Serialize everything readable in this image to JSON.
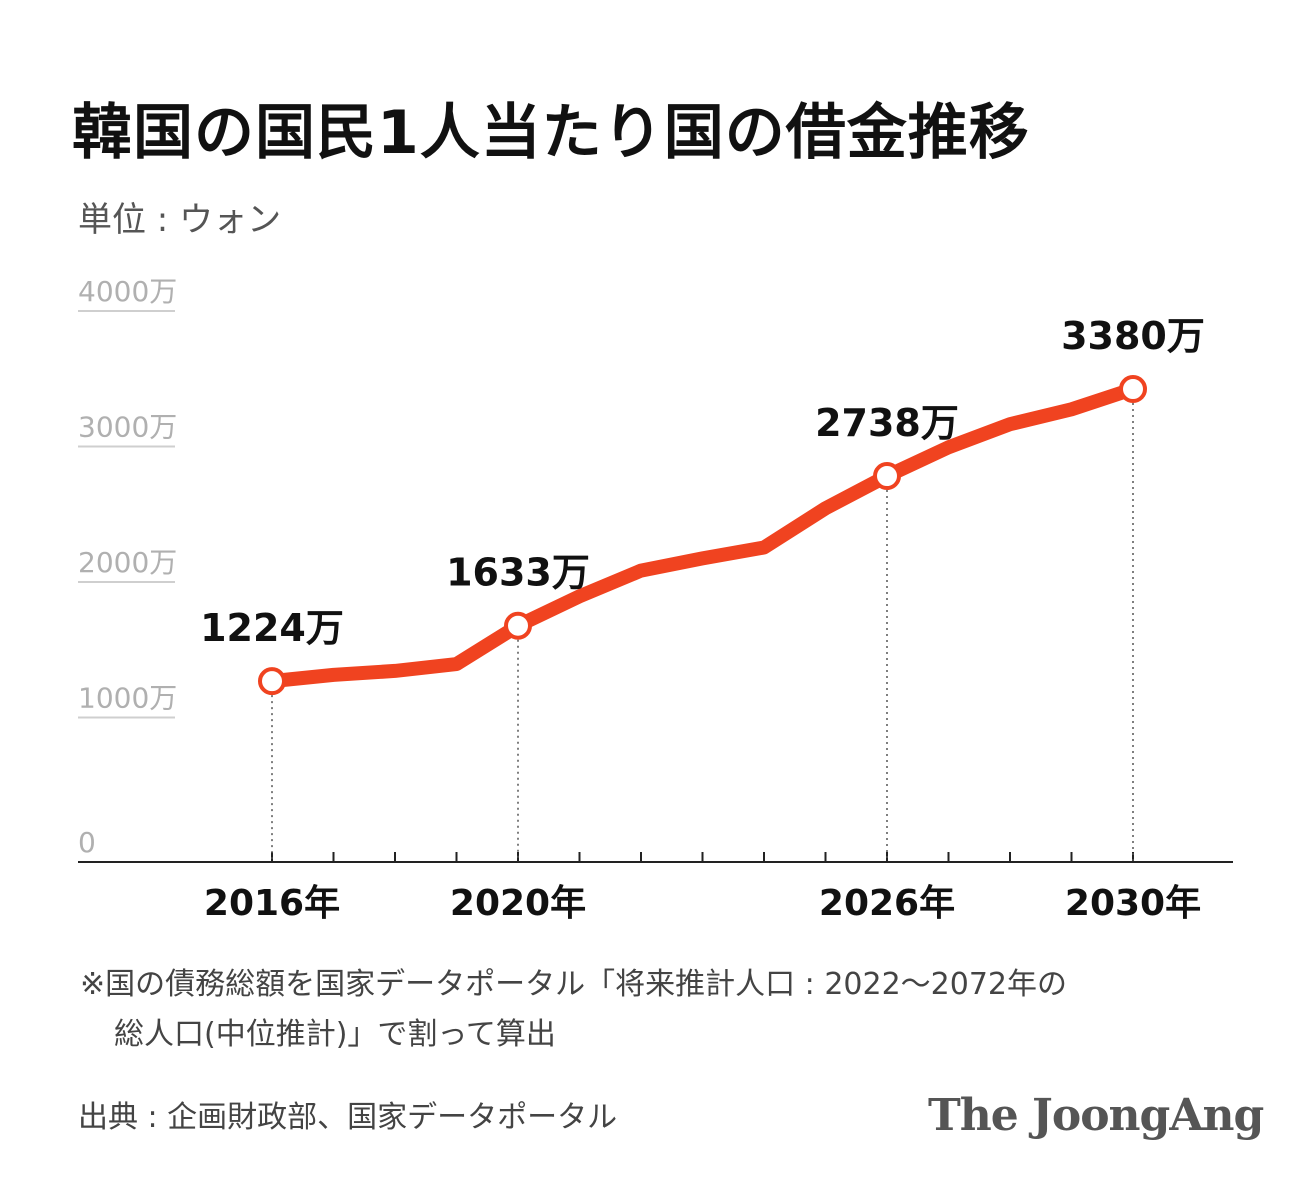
{
  "title": "韓国の国民1人当たり国の借金推移",
  "unit_label": "単位 : ウォン",
  "chart_data": {
    "type": "line",
    "title": "韓国の国民1人当たり国の借金推移",
    "ylabel": "単位 : ウォン",
    "xlabel": "",
    "ylim": [
      0,
      4000
    ],
    "y_ticks": [
      {
        "value": 0,
        "label": "0"
      },
      {
        "value": 1000,
        "label": "1000万"
      },
      {
        "value": 2000,
        "label": "2000万"
      },
      {
        "value": 3000,
        "label": "3000万"
      },
      {
        "value": 4000,
        "label": "4000万"
      }
    ],
    "x": [
      2016,
      2017,
      2018,
      2019,
      2020,
      2021,
      2022,
      2023,
      2024,
      2025,
      2026,
      2027,
      2028,
      2029,
      2030
    ],
    "values": [
      1224,
      1270,
      1300,
      1350,
      1633,
      1850,
      2040,
      2130,
      2210,
      2500,
      2738,
      2950,
      3120,
      3230,
      3380
    ],
    "x_tick_labels": [
      {
        "x": 2016,
        "label": "2016年"
      },
      {
        "x": 2020,
        "label": "2020年"
      },
      {
        "x": 2026,
        "label": "2026年"
      },
      {
        "x": 2030,
        "label": "2030年"
      }
    ],
    "highlight_points": [
      {
        "x": 2016,
        "value": 1224,
        "label": "1224万"
      },
      {
        "x": 2020,
        "value": 1633,
        "label": "1633万"
      },
      {
        "x": 2026,
        "value": 2738,
        "label": "2738万"
      },
      {
        "x": 2030,
        "value": 3380,
        "label": "3380万"
      }
    ],
    "line_color": "#f04320",
    "grid": false
  },
  "note": {
    "line1": "※国の債務総額を国家データポータル「将来推計人口 : 2022～2072年の",
    "line2": "総人口(中位推計)」で割って算出"
  },
  "source": "出典 : 企画財政部、国家データポータル",
  "logo": "The JoongAng"
}
